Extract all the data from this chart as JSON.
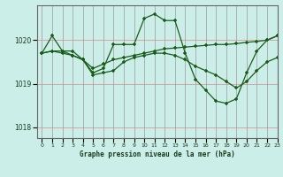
{
  "title": "Graphe pression niveau de la mer (hPa)",
  "bg_color": "#cceee8",
  "grid_color_v": "#aaaaaa",
  "grid_color_h": "#ff9999",
  "line_color": "#1a5c1a",
  "marker_color": "#1a5c1a",
  "xlim": [
    -0.5,
    23
  ],
  "ylim": [
    1017.75,
    1020.8
  ],
  "yticks": [
    1018,
    1019,
    1020
  ],
  "xticks": [
    0,
    1,
    2,
    3,
    4,
    5,
    6,
    7,
    8,
    9,
    10,
    11,
    12,
    13,
    14,
    15,
    16,
    17,
    18,
    19,
    20,
    21,
    22,
    23
  ],
  "series": [
    [
      1019.7,
      1020.1,
      1019.75,
      1019.75,
      1019.55,
      1019.25,
      1019.35,
      1019.9,
      1019.9,
      1019.9,
      1020.5,
      1020.6,
      1020.45,
      1020.45,
      1019.7,
      1019.1,
      1018.85,
      1018.6,
      1018.55,
      1018.65,
      1019.25,
      1019.75,
      1020.0,
      1020.1
    ],
    [
      1019.7,
      1019.75,
      1019.75,
      1019.65,
      1019.55,
      1019.35,
      1019.45,
      1019.55,
      1019.6,
      1019.65,
      1019.7,
      1019.75,
      1019.8,
      1019.82,
      1019.84,
      1019.86,
      1019.88,
      1019.9,
      1019.9,
      1019.92,
      1019.95,
      1019.97,
      1020.0,
      1020.1
    ],
    [
      1019.7,
      1019.75,
      1019.7,
      1019.65,
      1019.55,
      1019.2,
      1019.25,
      1019.3,
      1019.5,
      1019.6,
      1019.65,
      1019.7,
      1019.7,
      1019.65,
      1019.55,
      1019.4,
      1019.3,
      1019.2,
      1019.05,
      1018.9,
      1019.05,
      1019.3,
      1019.5,
      1019.6
    ]
  ]
}
